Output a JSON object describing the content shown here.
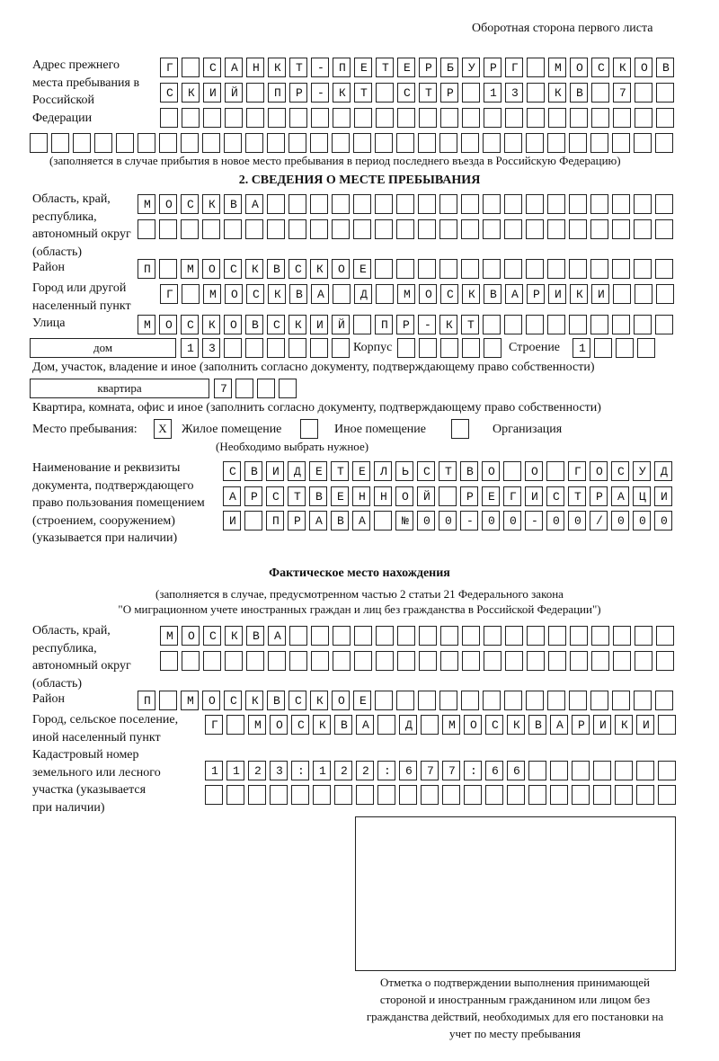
{
  "header": {
    "page_side": "Оборотная сторона первого листа"
  },
  "previous_address": {
    "label": "Адрес прежнего места пребывания в Российской Федерации",
    "rows": [
      "Г САНКТ-ПЕТЕРБУРГ МОСКОВ",
      "СКИЙ ПР-КТ СТР 13 КВ 7  ",
      "",
      ""
    ],
    "note": "(заполняется в случае прибытия в новое место пребывания в период последнего въезда в Российскую Федерацию)"
  },
  "section2": {
    "title": "2. СВЕДЕНИЯ О МЕСТЕ ПРЕБЫВАНИЯ",
    "region_label": "Область, край, республика, автономный округ (область)",
    "region_rows": [
      "МОСКВА",
      ""
    ],
    "district_label": "Район",
    "district": "П МОСКВСКОЕ",
    "city_label": "Город или другой населенный пункт",
    "city": "Г МОСКВА Д МОСКВАРИКИ",
    "street_label": "Улица",
    "street": "МОСКОВСКИЙ ПР-КТ",
    "house_type": "дом",
    "house_number": "13",
    "korpus_label": "Корпус",
    "korpus": "",
    "building_label": "Строение",
    "building": "1",
    "house_note": "Дом, участок, владение и иное (заполнить согласно документу, подтверждающему право собственности)",
    "apartment_type": "квартира",
    "apartment_number": "7",
    "apartment_note": "Квартира, комната, офис и иное (заполнить согласно документу, подтверждающему право собственности)",
    "stay_place_label": "Место пребывания:",
    "stay_options": [
      {
        "label": "Жилое помещение",
        "mark": "X"
      },
      {
        "label": "Иное помещение",
        "mark": ""
      },
      {
        "label": "Организация",
        "mark": ""
      }
    ],
    "stay_note": "(Необходимо выбрать нужное)",
    "document_label": "Наименование и реквизиты документа, подтверждающего право пользования помещением (строением, сооружением) (указывается при наличии)",
    "document_rows": [
      "СВИДЕТЕЛЬСТВО О ГОСУД",
      "АРСТВЕННОЙ РЕГИСТРАЦИ",
      "И ПРАВА №00-00-00/000"
    ]
  },
  "actual_location": {
    "title": "Фактическое место нахождения",
    "note_line1": "(заполняется в случае, предусмотренном частью 2 статьи 21 Федерального закона",
    "note_line2": "\"О миграционном учете иностранных граждан и лиц без гражданства в Российской Федерации\")",
    "region_label": "Область, край, республика, автономный округ (область)",
    "region_rows": [
      "МОСКВА",
      ""
    ],
    "district_label": "Район",
    "district": "П МОСКВСКОЕ",
    "city_label": "Город, сельское поселение, иной населенный пункт",
    "city": "Г МОСКВА Д МОСКВАРИКИ",
    "cadastral_label": "Кадастровый номер земельного или лесного участка (указывается при наличии)",
    "cadastral_rows": [
      "1123:122:677:66",
      ""
    ]
  },
  "confirmation": {
    "caption": "Отметка о подтверждении выполнения принимающей стороной и иностранным гражданином или лицом без гражданства действий, необходимых для его постановки на учет по месту пребывания"
  }
}
